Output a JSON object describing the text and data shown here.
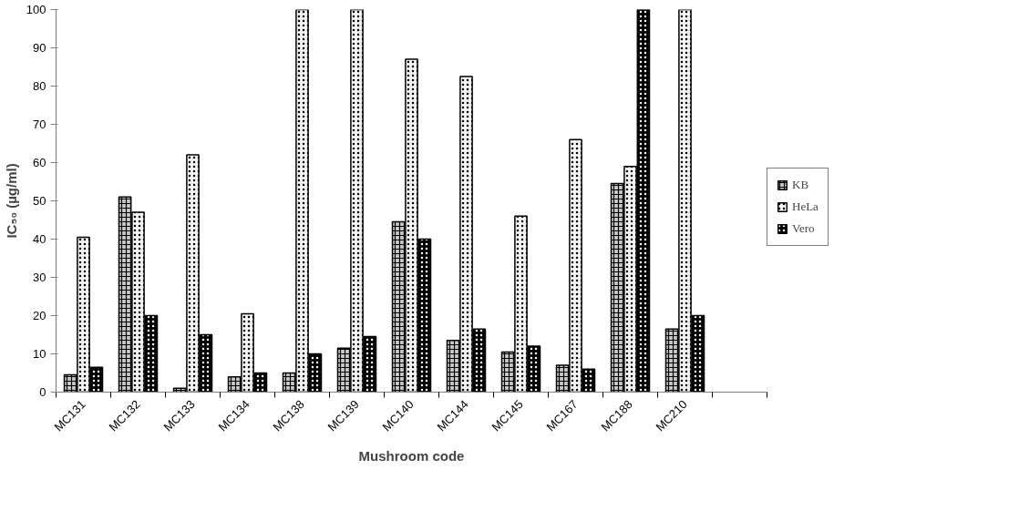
{
  "chart_data": {
    "type": "bar",
    "xlabel": "Mushroom code",
    "ylabel": "IC₅₀ (µg/ml)",
    "categories": [
      "MC131",
      "MC132",
      "MC133",
      "MC134",
      "MC138",
      "MC139",
      "MC140",
      "MC144",
      "MC145",
      "MC167",
      "MC188",
      "MC210",
      null
    ],
    "series": [
      {
        "name": "KB",
        "color": "#c8c8c8",
        "values": [
          4.5,
          51,
          1,
          4,
          5,
          11.5,
          44.5,
          13.5,
          10.5,
          7,
          54.5,
          16.5,
          null
        ]
      },
      {
        "name": "HeLa",
        "color": "#f4f4f4",
        "values": [
          40.5,
          47,
          62,
          20.5,
          100,
          100,
          87,
          82.5,
          46,
          66,
          59,
          100,
          null
        ]
      },
      {
        "name": "Vero",
        "color": "#000000",
        "values": [
          6.5,
          20,
          15,
          5,
          10,
          14.5,
          40,
          16.5,
          12,
          6,
          100,
          20,
          null
        ]
      }
    ],
    "ylim": [
      0,
      100
    ],
    "yticks": [
      0,
      10,
      20,
      30,
      40,
      50,
      60,
      70,
      80,
      90,
      100
    ],
    "grid": false,
    "legend": "right"
  }
}
